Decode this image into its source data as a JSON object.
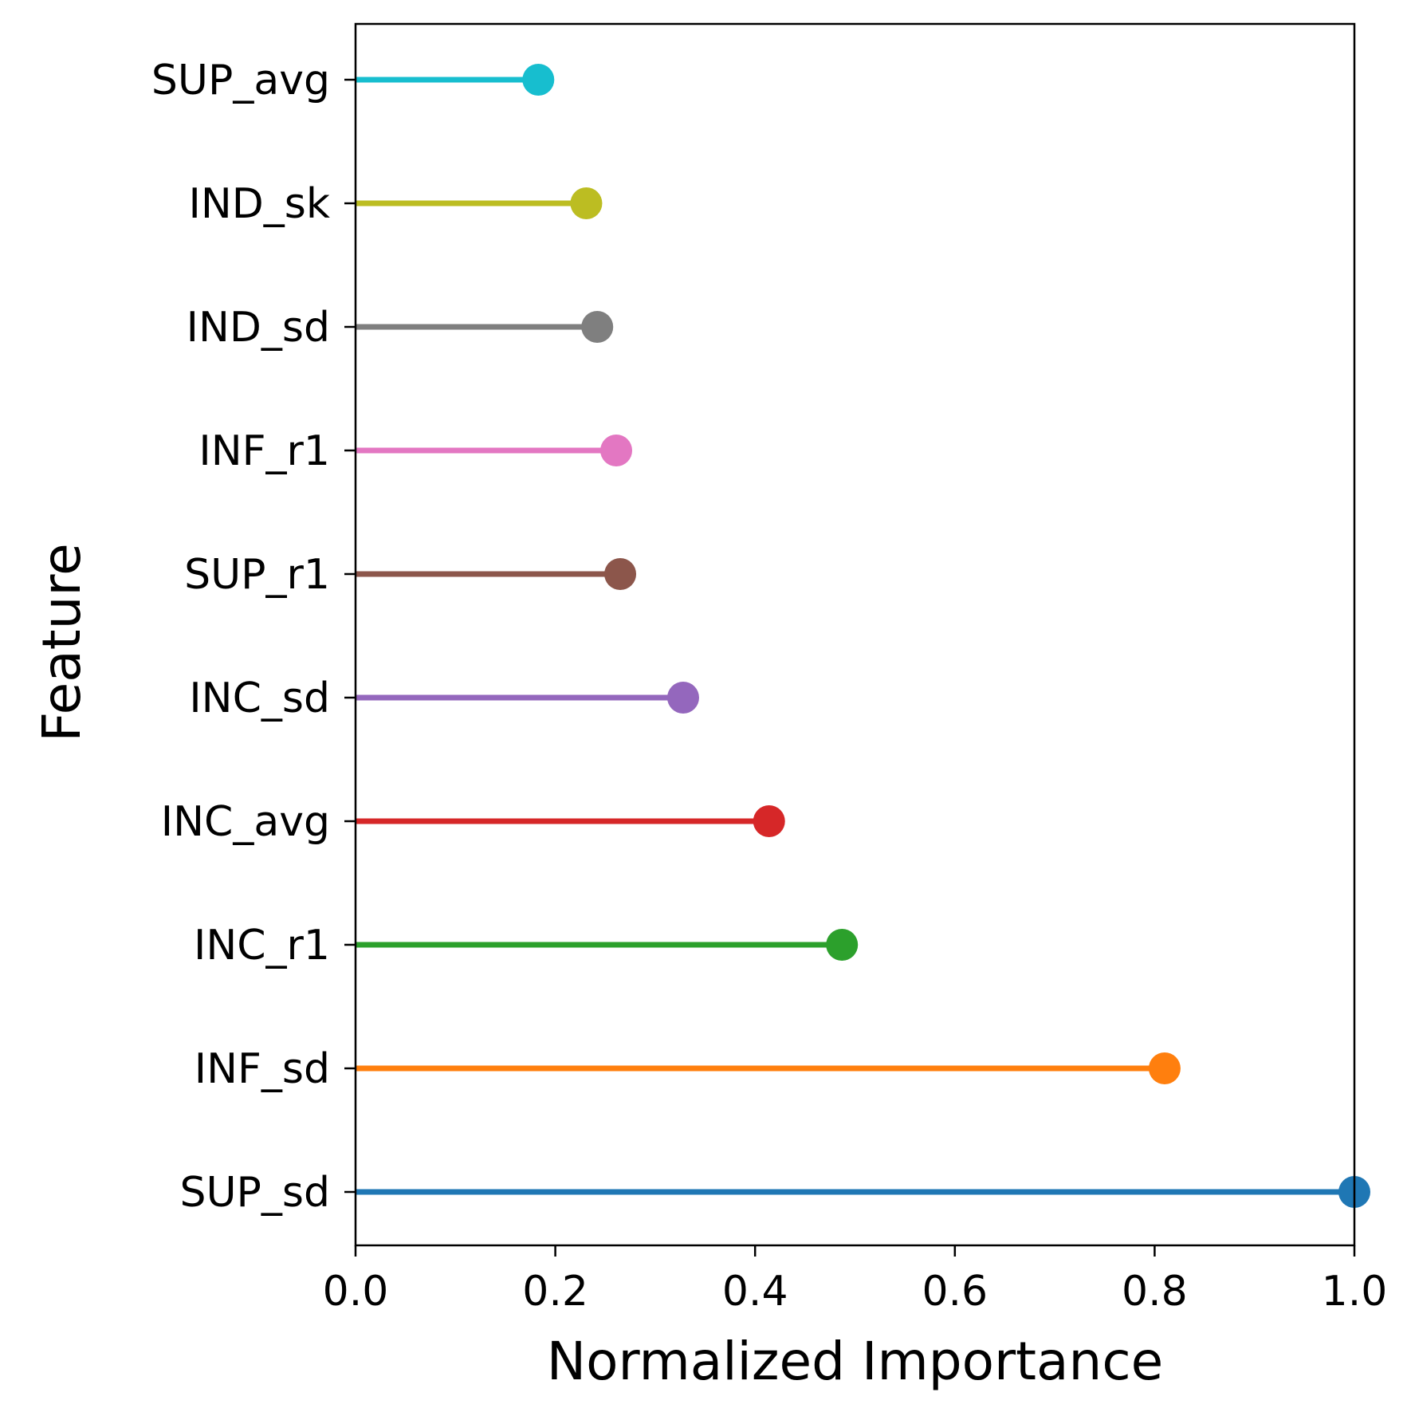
{
  "chart_data": {
    "type": "lollipop",
    "orientation": "horizontal",
    "title": "",
    "xlabel": "Normalized Importance",
    "ylabel": "Feature",
    "xlim": [
      0.0,
      1.0
    ],
    "xticks": [
      "0.0",
      "0.2",
      "0.4",
      "0.6",
      "0.8",
      "1.0"
    ],
    "grid": false,
    "legend": "none",
    "categories": [
      "SUP_sd",
      "INF_sd",
      "INC_r1",
      "INC_avg",
      "INC_sd",
      "SUP_r1",
      "INF_r1",
      "IND_sd",
      "IND_sk",
      "SUP_avg"
    ],
    "values": [
      1.0,
      0.81,
      0.487,
      0.414,
      0.328,
      0.265,
      0.261,
      0.242,
      0.231,
      0.183
    ],
    "colors": [
      "#1f77b4",
      "#ff7f0e",
      "#2ca02c",
      "#d62728",
      "#9467bd",
      "#8c564b",
      "#e377c2",
      "#7f7f7f",
      "#bcbd22",
      "#17becf"
    ]
  }
}
